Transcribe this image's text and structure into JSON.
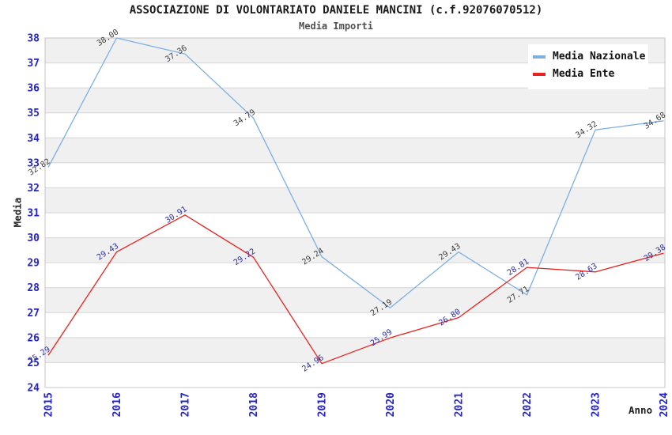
{
  "title": "ASSOCIAZIONE DI VOLONTARIATO DANIELE MANCINI (c.f.92076070512)",
  "subtitle": "Media Importi",
  "legend": {
    "items": [
      {
        "label": "Media Nazionale",
        "color": "#7DAFE4"
      },
      {
        "label": "Media Ente",
        "color": "#E8221E"
      }
    ]
  },
  "chart_data": {
    "type": "line",
    "x": [
      2015,
      2016,
      2017,
      2018,
      2019,
      2020,
      2021,
      2022,
      2023,
      2024
    ],
    "xlabel": "Anno",
    "ylabel": "Media",
    "ylim": [
      24,
      38
    ],
    "ytick_step": 1,
    "grid": "horizontal gridlines, alternating gray bands",
    "legend_position": "top-right-inside",
    "axis_tick_color": "#2323D2",
    "band_color": "#F0F0F0",
    "gridline_color": "#D6D6D6",
    "border_color": "#C4C4C4",
    "series": [
      {
        "name": "Media Nazionale",
        "color": "#7DAFE4",
        "label_color": "#3C3C3C",
        "values": [
          32.82,
          38.0,
          37.36,
          34.79,
          29.24,
          27.19,
          29.43,
          27.71,
          34.32,
          34.68
        ]
      },
      {
        "name": "Media Ente",
        "color": "#E8221E",
        "label_color": "#2E2EA0",
        "values": [
          25.29,
          29.43,
          30.91,
          29.22,
          24.96,
          25.99,
          26.8,
          28.81,
          28.63,
          29.38
        ]
      }
    ]
  }
}
